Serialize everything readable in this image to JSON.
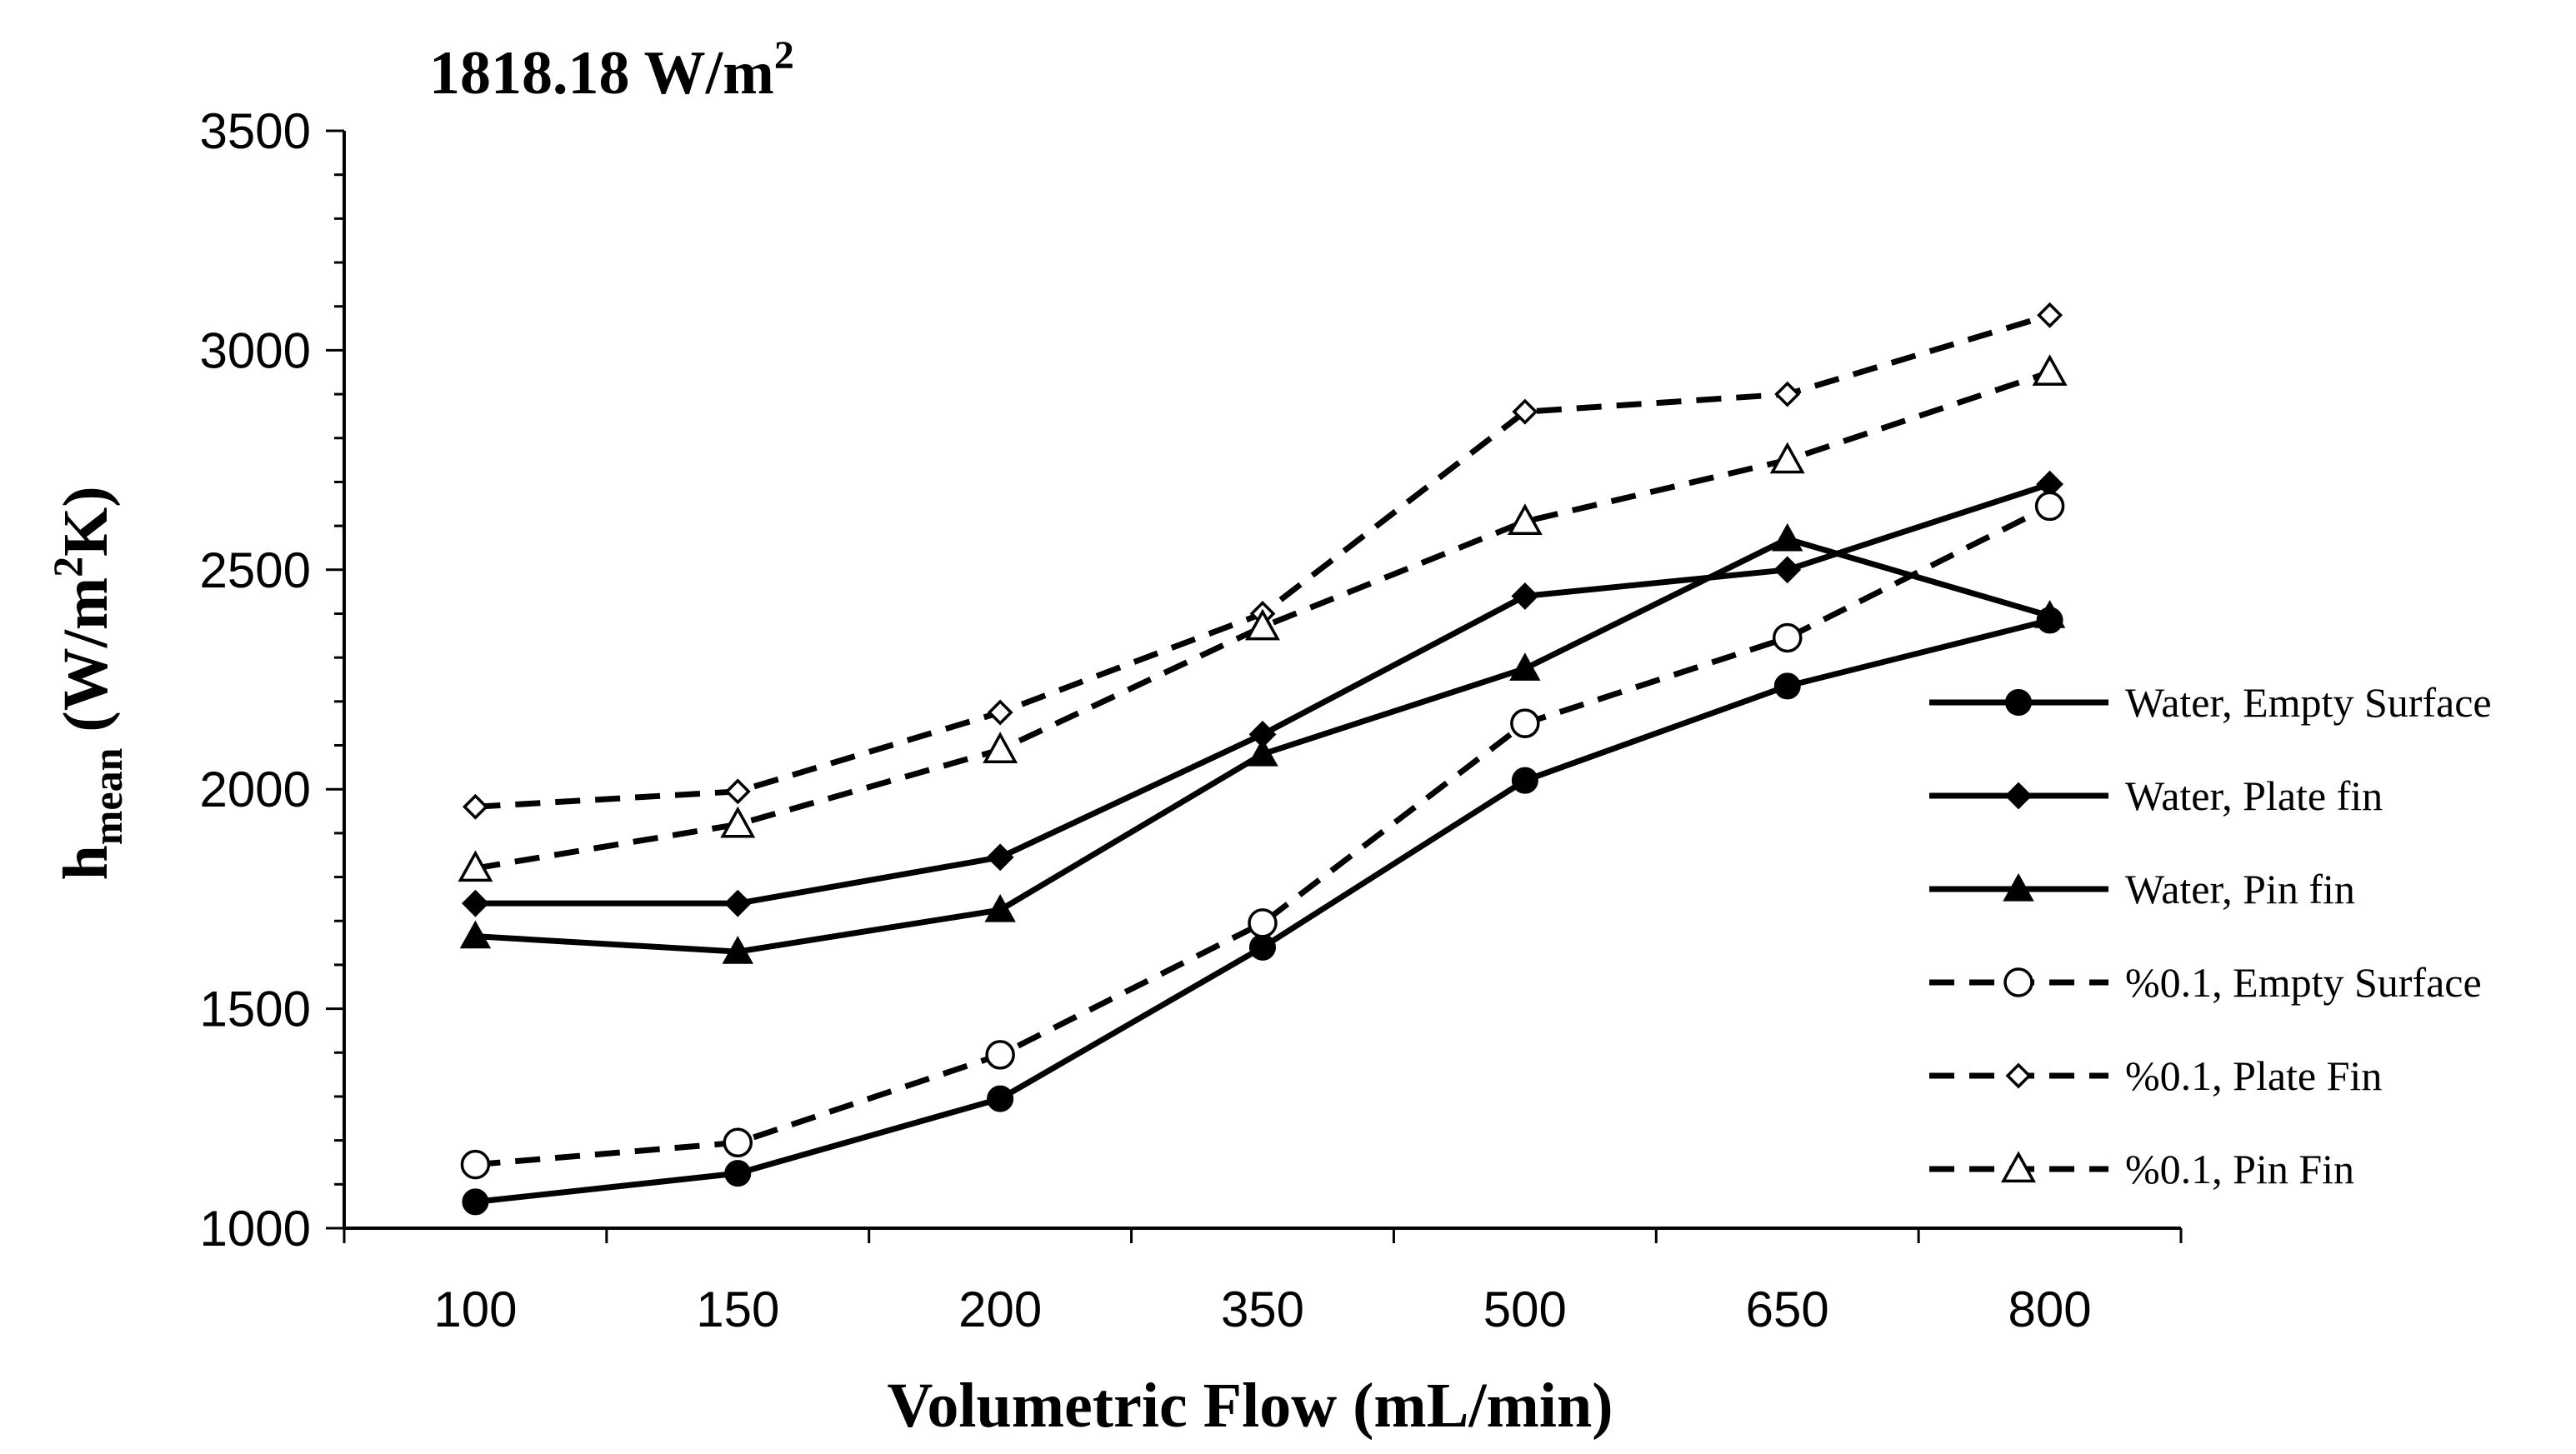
{
  "chart_data": {
    "type": "line",
    "title": "1818.18 W/m",
    "title_sup": "2",
    "xlabel": "Volumetric Flow (mL/min)",
    "ylabel": {
      "main": "h",
      "sub": "mean",
      "unit_pre": " (W/m",
      "unit_sup": "2",
      "unit_post": "K)"
    },
    "categories": [
      "100",
      "150",
      "200",
      "350",
      "500",
      "650",
      "800"
    ],
    "yticks": [
      "1000",
      "1500",
      "2000",
      "2500",
      "3000",
      "3500"
    ],
    "ylim": [
      1000,
      3500
    ],
    "legend_position": "right",
    "series": [
      {
        "name": "Water, Empty Surface",
        "values": [
          1060,
          1125,
          1295,
          1640,
          2020,
          2235,
          2385
        ],
        "marker": "circle",
        "fill": "filled",
        "dash": "solid"
      },
      {
        "name": "Water, Plate fin",
        "values": [
          1740,
          1740,
          1845,
          2125,
          2440,
          2500,
          2695
        ],
        "marker": "diamond",
        "fill": "filled",
        "dash": "solid"
      },
      {
        "name": "Water, Pin fin",
        "values": [
          1665,
          1630,
          1725,
          2080,
          2275,
          2570,
          2395
        ],
        "marker": "triangle",
        "fill": "filled",
        "dash": "solid"
      },
      {
        "name": "%0.1, Empty Surface",
        "values": [
          1145,
          1195,
          1395,
          1695,
          2150,
          2345,
          2645
        ],
        "marker": "circle",
        "fill": "open",
        "dash": "dashed"
      },
      {
        "name": "%0.1, Plate Fin",
        "values": [
          1960,
          1995,
          2175,
          2400,
          2860,
          2900,
          3080
        ],
        "marker": "diamond",
        "fill": "open",
        "dash": "dashed"
      },
      {
        "name": "%0.1, Pin Fin",
        "values": [
          1820,
          1920,
          2090,
          2370,
          2610,
          2750,
          2950
        ],
        "marker": "triangle",
        "fill": "open",
        "dash": "dashed"
      }
    ],
    "colors": {
      "line": "#000000",
      "background": "#ffffff"
    }
  }
}
